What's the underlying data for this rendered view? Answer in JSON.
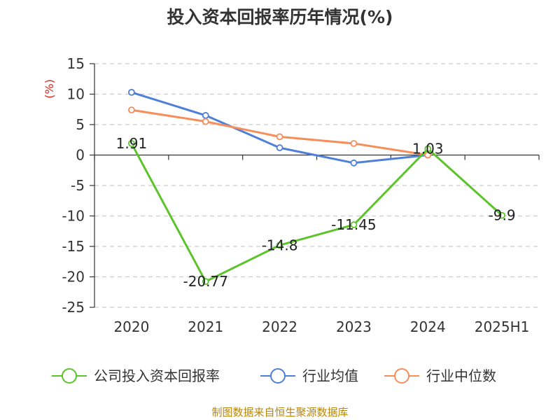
{
  "chart_data": {
    "type": "line",
    "title": "投入资本回报率历年情况(%)",
    "ylabel": "(%)",
    "categories": [
      "2020",
      "2021",
      "2022",
      "2023",
      "2024",
      "2025H1"
    ],
    "yticks": [
      "15",
      "10",
      "5",
      "0",
      "-5",
      "-10",
      "-15",
      "-20",
      "-25"
    ],
    "ylim": [
      -25,
      15
    ],
    "grid": true,
    "legend_position": "bottom",
    "series": [
      {
        "name": "公司投入资本回报率",
        "color": "#5cc42b",
        "values": [
          1.91,
          -20.77,
          -14.8,
          -11.45,
          1.03,
          -9.9
        ],
        "labels": [
          "1.91",
          "-20.77",
          "-14.8",
          "-11.45",
          "1.03",
          "-9.9"
        ]
      },
      {
        "name": "行业均值",
        "color": "#4e7fd9",
        "values": [
          10.3,
          6.5,
          1.2,
          -1.3,
          0.0,
          null
        ]
      },
      {
        "name": "行业中位数",
        "color": "#f78e5a",
        "values": [
          7.4,
          5.5,
          3.0,
          1.9,
          0.0,
          null
        ]
      }
    ],
    "source": "制图数据来自恒生聚源数据库"
  }
}
